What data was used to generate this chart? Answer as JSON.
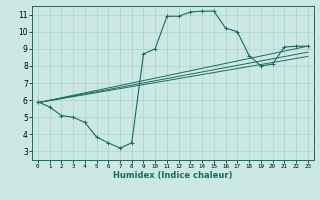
{
  "title": "",
  "xlabel": "Humidex (Indice chaleur)",
  "ylabel": "",
  "bg_color": "#cce8e4",
  "grid_color": "#aad4ce",
  "line_color": "#1a6b5e",
  "xlim": [
    -0.5,
    23.5
  ],
  "ylim": [
    2.5,
    11.5
  ],
  "xticks": [
    0,
    1,
    2,
    3,
    4,
    5,
    6,
    7,
    8,
    9,
    10,
    11,
    12,
    13,
    14,
    15,
    16,
    17,
    18,
    19,
    20,
    21,
    22,
    23
  ],
  "yticks": [
    3,
    4,
    5,
    6,
    7,
    8,
    9,
    10,
    11
  ],
  "curves": [
    {
      "x": [
        0,
        1,
        2,
        3,
        4,
        5,
        6,
        7,
        8,
        9,
        10,
        11,
        12,
        13,
        14,
        15,
        16,
        17,
        18,
        19,
        20,
        21,
        22,
        23
      ],
      "y": [
        5.9,
        5.6,
        5.1,
        5.0,
        4.7,
        3.85,
        3.5,
        3.2,
        3.5,
        8.7,
        9.0,
        10.9,
        10.9,
        11.15,
        11.2,
        11.2,
        10.2,
        10.0,
        8.6,
        8.0,
        8.1,
        9.1,
        9.15,
        9.15
      ]
    },
    {
      "x": [
        0,
        23
      ],
      "y": [
        5.85,
        9.15
      ]
    },
    {
      "x": [
        0,
        23
      ],
      "y": [
        5.85,
        8.8
      ]
    },
    {
      "x": [
        0,
        23
      ],
      "y": [
        5.85,
        8.55
      ]
    }
  ]
}
